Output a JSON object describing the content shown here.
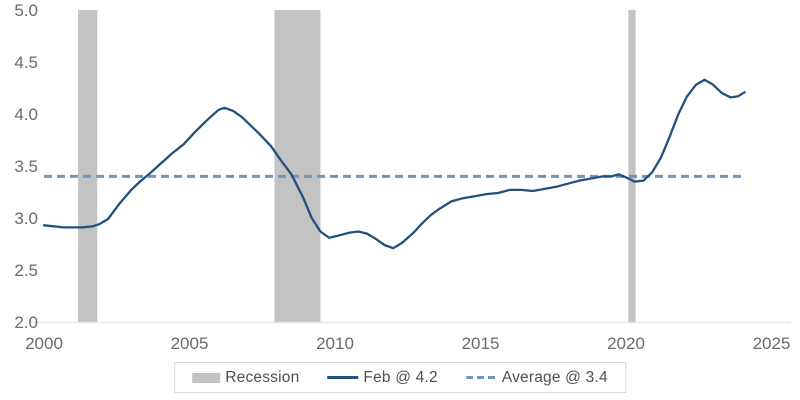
{
  "chart_data": {
    "type": "line",
    "title": "",
    "xlabel": "",
    "ylabel": "",
    "xlim": [
      2000,
      2025
    ],
    "ylim": [
      2.0,
      5.0
    ],
    "grid": false,
    "x_tick_values": [
      2000,
      2005,
      2010,
      2015,
      2020,
      2025
    ],
    "x_tick_labels": [
      "2000",
      "2005",
      "2010",
      "2015",
      "2020",
      "2025"
    ],
    "y_tick_values": [
      2.0,
      2.5,
      3.0,
      3.5,
      4.0,
      4.5,
      5.0
    ],
    "y_tick_labels": [
      "2.0",
      "2.5",
      "3.0",
      "3.5",
      "4.0",
      "4.5",
      "5.0"
    ],
    "recession_bands": {
      "label": "Recession",
      "color": "#c3c3c3",
      "spans": [
        [
          2001.17,
          2001.83
        ],
        [
          2007.92,
          2009.5
        ],
        [
          2020.08,
          2020.33
        ]
      ]
    },
    "average_line": {
      "label": "Average @ 3.4",
      "value": 3.4,
      "color": "#7295b8",
      "style": "dashed",
      "x_start": 2000,
      "x_end": 2024
    },
    "series": [
      {
        "name": "Feb @ 4.2",
        "color": "#24507e",
        "last_point_label": "Feb @ 4.2",
        "points": [
          [
            2000.0,
            2.93
          ],
          [
            2000.33,
            2.92
          ],
          [
            2000.67,
            2.91
          ],
          [
            2001.0,
            2.91
          ],
          [
            2001.33,
            2.91
          ],
          [
            2001.67,
            2.92
          ],
          [
            2001.9,
            2.94
          ],
          [
            2002.2,
            2.99
          ],
          [
            2002.6,
            3.14
          ],
          [
            2003.0,
            3.27
          ],
          [
            2003.3,
            3.35
          ],
          [
            2003.6,
            3.42
          ],
          [
            2004.0,
            3.52
          ],
          [
            2004.4,
            3.62
          ],
          [
            2004.8,
            3.71
          ],
          [
            2005.2,
            3.83
          ],
          [
            2005.6,
            3.94
          ],
          [
            2006.0,
            4.04
          ],
          [
            2006.2,
            4.06
          ],
          [
            2006.5,
            4.03
          ],
          [
            2006.8,
            3.97
          ],
          [
            2007.1,
            3.89
          ],
          [
            2007.4,
            3.81
          ],
          [
            2007.8,
            3.69
          ],
          [
            2008.1,
            3.57
          ],
          [
            2008.5,
            3.42
          ],
          [
            2008.9,
            3.2
          ],
          [
            2009.2,
            3.0
          ],
          [
            2009.5,
            2.87
          ],
          [
            2009.8,
            2.81
          ],
          [
            2010.1,
            2.83
          ],
          [
            2010.5,
            2.86
          ],
          [
            2010.8,
            2.87
          ],
          [
            2011.1,
            2.85
          ],
          [
            2011.4,
            2.8
          ],
          [
            2011.7,
            2.74
          ],
          [
            2012.0,
            2.71
          ],
          [
            2012.3,
            2.76
          ],
          [
            2012.7,
            2.86
          ],
          [
            2013.0,
            2.95
          ],
          [
            2013.3,
            3.03
          ],
          [
            2013.6,
            3.09
          ],
          [
            2014.0,
            3.16
          ],
          [
            2014.4,
            3.19
          ],
          [
            2014.8,
            3.21
          ],
          [
            2015.2,
            3.23
          ],
          [
            2015.6,
            3.24
          ],
          [
            2016.0,
            3.27
          ],
          [
            2016.4,
            3.27
          ],
          [
            2016.8,
            3.26
          ],
          [
            2017.2,
            3.28
          ],
          [
            2017.6,
            3.3
          ],
          [
            2018.0,
            3.33
          ],
          [
            2018.4,
            3.36
          ],
          [
            2018.8,
            3.38
          ],
          [
            2019.2,
            3.4
          ],
          [
            2019.5,
            3.4
          ],
          [
            2019.75,
            3.42
          ],
          [
            2020.0,
            3.39
          ],
          [
            2020.3,
            3.35
          ],
          [
            2020.6,
            3.36
          ],
          [
            2020.9,
            3.44
          ],
          [
            2021.2,
            3.58
          ],
          [
            2021.5,
            3.78
          ],
          [
            2021.8,
            4.0
          ],
          [
            2022.1,
            4.17
          ],
          [
            2022.4,
            4.28
          ],
          [
            2022.7,
            4.33
          ],
          [
            2023.0,
            4.28
          ],
          [
            2023.3,
            4.2
          ],
          [
            2023.6,
            4.16
          ],
          [
            2023.85,
            4.17
          ],
          [
            2024.08,
            4.21
          ]
        ]
      }
    ],
    "legend_position": "bottom-center"
  },
  "legend": {
    "items": [
      {
        "label": "Recession",
        "swatch": "band"
      },
      {
        "label": "Feb @ 4.2",
        "swatch": "line"
      },
      {
        "label": "Average @ 3.4",
        "swatch": "dash"
      }
    ]
  },
  "colors": {
    "line": "#24507e",
    "average_line": "#7295b8",
    "recession_band": "#c3c3c3",
    "axis_line": "#e7e7e7",
    "tick_text": "#6b6b6b",
    "legend_text": "#4f4f4f",
    "legend_border": "#d9d9d9",
    "background": "#ffffff"
  }
}
